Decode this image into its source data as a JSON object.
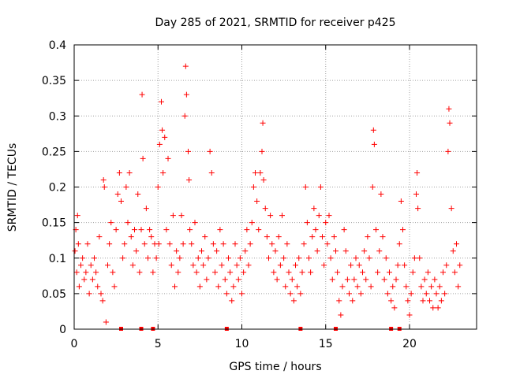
{
  "chart_data": {
    "type": "scatter",
    "title": "Day 285 of 2021, SRMTID for receiver p425",
    "xlabel": "GPS time / hours",
    "ylabel": "SRMTID / TECUs",
    "xlim": [
      0,
      24
    ],
    "ylim": [
      0,
      0.4
    ],
    "xticks": [
      0,
      5,
      10,
      15,
      20
    ],
    "yticks": [
      0,
      0.05,
      0.1,
      0.15,
      0.2,
      0.25,
      0.3,
      0.35,
      0.4
    ],
    "ytick_labels": [
      "0",
      "0.05",
      "0.1",
      "0.15",
      "0.2",
      "0.25",
      "0.3",
      "0.35",
      "0.4"
    ],
    "grid": true,
    "marker": "plus",
    "color": "#ff0000",
    "series": [
      {
        "name": "SRMTID",
        "points": [
          [
            0.05,
            0.11
          ],
          [
            0.1,
            0.14
          ],
          [
            0.15,
            0.08
          ],
          [
            0.2,
            0.16
          ],
          [
            0.25,
            0.12
          ],
          [
            0.3,
            0.06
          ],
          [
            0.4,
            0.09
          ],
          [
            0.5,
            0.1
          ],
          [
            0.6,
            0.07
          ],
          [
            0.7,
            0.08
          ],
          [
            0.8,
            0.12
          ],
          [
            0.9,
            0.05
          ],
          [
            1.0,
            0.09
          ],
          [
            1.1,
            0.07
          ],
          [
            1.2,
            0.1
          ],
          [
            1.3,
            0.08
          ],
          [
            1.4,
            0.06
          ],
          [
            1.5,
            0.13
          ],
          [
            1.6,
            0.05
          ],
          [
            1.7,
            0.04
          ],
          [
            1.75,
            0.21
          ],
          [
            1.8,
            0.2
          ],
          [
            1.9,
            0.01
          ],
          [
            2.0,
            0.09
          ],
          [
            2.1,
            0.12
          ],
          [
            2.2,
            0.15
          ],
          [
            2.3,
            0.08
          ],
          [
            2.4,
            0.06
          ],
          [
            2.5,
            0.14
          ],
          [
            2.6,
            0.19
          ],
          [
            2.7,
            0.22
          ],
          [
            2.8,
            0.18
          ],
          [
            2.9,
            0.1
          ],
          [
            3.0,
            0.12
          ],
          [
            3.1,
            0.2
          ],
          [
            3.2,
            0.15
          ],
          [
            3.3,
            0.22
          ],
          [
            3.4,
            0.13
          ],
          [
            3.5,
            0.09
          ],
          [
            3.6,
            0.14
          ],
          [
            3.7,
            0.11
          ],
          [
            3.8,
            0.19
          ],
          [
            3.9,
            0.08
          ],
          [
            4.0,
            0.14
          ],
          [
            4.05,
            0.33
          ],
          [
            4.1,
            0.24
          ],
          [
            4.2,
            0.12
          ],
          [
            4.3,
            0.17
          ],
          [
            4.4,
            0.1
          ],
          [
            4.5,
            0.14
          ],
          [
            4.6,
            0.13
          ],
          [
            4.7,
            0.08
          ],
          [
            4.8,
            0.12
          ],
          [
            4.9,
            0.1
          ],
          [
            5.0,
            0.2
          ],
          [
            5.05,
            0.12
          ],
          [
            5.1,
            0.26
          ],
          [
            5.2,
            0.32
          ],
          [
            5.25,
            0.28
          ],
          [
            5.3,
            0.22
          ],
          [
            5.4,
            0.27
          ],
          [
            5.5,
            0.14
          ],
          [
            5.6,
            0.24
          ],
          [
            5.7,
            0.12
          ],
          [
            5.8,
            0.09
          ],
          [
            5.9,
            0.16
          ],
          [
            6.0,
            0.06
          ],
          [
            6.1,
            0.11
          ],
          [
            6.2,
            0.08
          ],
          [
            6.3,
            0.1
          ],
          [
            6.4,
            0.16
          ],
          [
            6.5,
            0.12
          ],
          [
            6.6,
            0.3
          ],
          [
            6.65,
            0.37
          ],
          [
            6.7,
            0.33
          ],
          [
            6.8,
            0.25
          ],
          [
            6.85,
            0.21
          ],
          [
            6.9,
            0.14
          ],
          [
            7.0,
            0.12
          ],
          [
            7.1,
            0.09
          ],
          [
            7.2,
            0.15
          ],
          [
            7.3,
            0.08
          ],
          [
            7.4,
            0.1
          ],
          [
            7.5,
            0.06
          ],
          [
            7.6,
            0.11
          ],
          [
            7.7,
            0.09
          ],
          [
            7.8,
            0.13
          ],
          [
            7.9,
            0.07
          ],
          [
            8.0,
            0.1
          ],
          [
            8.1,
            0.25
          ],
          [
            8.2,
            0.22
          ],
          [
            8.3,
            0.12
          ],
          [
            8.4,
            0.08
          ],
          [
            8.5,
            0.11
          ],
          [
            8.6,
            0.06
          ],
          [
            8.7,
            0.14
          ],
          [
            8.8,
            0.09
          ],
          [
            8.9,
            0.12
          ],
          [
            9.0,
            0.07
          ],
          [
            9.1,
            0.05
          ],
          [
            9.2,
            0.1
          ],
          [
            9.3,
            0.08
          ],
          [
            9.4,
            0.04
          ],
          [
            9.5,
            0.06
          ],
          [
            9.6,
            0.12
          ],
          [
            9.7,
            0.09
          ],
          [
            9.8,
            0.07
          ],
          [
            9.9,
            0.1
          ],
          [
            10.0,
            0.05
          ],
          [
            10.1,
            0.08
          ],
          [
            10.2,
            0.11
          ],
          [
            10.3,
            0.14
          ],
          [
            10.4,
            0.09
          ],
          [
            10.5,
            0.12
          ],
          [
            10.6,
            0.15
          ],
          [
            10.7,
            0.2
          ],
          [
            10.8,
            0.22
          ],
          [
            10.9,
            0.18
          ],
          [
            11.0,
            0.14
          ],
          [
            11.1,
            0.22
          ],
          [
            11.2,
            0.25
          ],
          [
            11.25,
            0.29
          ],
          [
            11.3,
            0.21
          ],
          [
            11.4,
            0.17
          ],
          [
            11.5,
            0.13
          ],
          [
            11.6,
            0.1
          ],
          [
            11.7,
            0.16
          ],
          [
            11.8,
            0.12
          ],
          [
            11.9,
            0.08
          ],
          [
            12.0,
            0.11
          ],
          [
            12.1,
            0.07
          ],
          [
            12.2,
            0.13
          ],
          [
            12.3,
            0.09
          ],
          [
            12.4,
            0.16
          ],
          [
            12.5,
            0.1
          ],
          [
            12.6,
            0.06
          ],
          [
            12.7,
            0.12
          ],
          [
            12.8,
            0.08
          ],
          [
            12.9,
            0.05
          ],
          [
            13.0,
            0.07
          ],
          [
            13.1,
            0.04
          ],
          [
            13.2,
            0.09
          ],
          [
            13.3,
            0.06
          ],
          [
            13.4,
            0.1
          ],
          [
            13.5,
            0.05
          ],
          [
            13.6,
            0.08
          ],
          [
            13.7,
            0.12
          ],
          [
            13.8,
            0.2
          ],
          [
            13.9,
            0.15
          ],
          [
            14.0,
            0.1
          ],
          [
            14.1,
            0.08
          ],
          [
            14.2,
            0.13
          ],
          [
            14.3,
            0.17
          ],
          [
            14.4,
            0.14
          ],
          [
            14.5,
            0.11
          ],
          [
            14.6,
            0.16
          ],
          [
            14.7,
            0.2
          ],
          [
            14.8,
            0.13
          ],
          [
            14.9,
            0.09
          ],
          [
            15.0,
            0.15
          ],
          [
            15.1,
            0.12
          ],
          [
            15.2,
            0.16
          ],
          [
            15.3,
            0.1
          ],
          [
            15.4,
            0.07
          ],
          [
            15.5,
            0.13
          ],
          [
            15.6,
            0.11
          ],
          [
            15.7,
            0.08
          ],
          [
            15.8,
            0.04
          ],
          [
            15.9,
            0.02
          ],
          [
            16.0,
            0.06
          ],
          [
            16.1,
            0.14
          ],
          [
            16.2,
            0.11
          ],
          [
            16.3,
            0.07
          ],
          [
            16.4,
            0.05
          ],
          [
            16.5,
            0.09
          ],
          [
            16.6,
            0.04
          ],
          [
            16.7,
            0.07
          ],
          [
            16.8,
            0.1
          ],
          [
            16.9,
            0.06
          ],
          [
            17.0,
            0.09
          ],
          [
            17.1,
            0.05
          ],
          [
            17.2,
            0.08
          ],
          [
            17.3,
            0.11
          ],
          [
            17.4,
            0.07
          ],
          [
            17.5,
            0.13
          ],
          [
            17.6,
            0.1
          ],
          [
            17.7,
            0.06
          ],
          [
            17.8,
            0.2
          ],
          [
            17.85,
            0.28
          ],
          [
            17.9,
            0.26
          ],
          [
            18.0,
            0.14
          ],
          [
            18.1,
            0.08
          ],
          [
            18.2,
            0.11
          ],
          [
            18.3,
            0.19
          ],
          [
            18.4,
            0.13
          ],
          [
            18.5,
            0.07
          ],
          [
            18.6,
            0.1
          ],
          [
            18.7,
            0.05
          ],
          [
            18.8,
            0.08
          ],
          [
            18.9,
            0.04
          ],
          [
            19.0,
            0.06
          ],
          [
            19.1,
            0.03
          ],
          [
            19.2,
            0.07
          ],
          [
            19.3,
            0.09
          ],
          [
            19.4,
            0.12
          ],
          [
            19.5,
            0.18
          ],
          [
            19.6,
            0.14
          ],
          [
            19.7,
            0.09
          ],
          [
            19.8,
            0.06
          ],
          [
            19.9,
            0.04
          ],
          [
            20.0,
            0.02
          ],
          [
            20.1,
            0.05
          ],
          [
            20.2,
            0.08
          ],
          [
            20.3,
            0.1
          ],
          [
            20.4,
            0.19
          ],
          [
            20.45,
            0.22
          ],
          [
            20.5,
            0.17
          ],
          [
            20.6,
            0.1
          ],
          [
            20.7,
            0.06
          ],
          [
            20.8,
            0.04
          ],
          [
            20.9,
            0.07
          ],
          [
            21.0,
            0.05
          ],
          [
            21.1,
            0.08
          ],
          [
            21.2,
            0.04
          ],
          [
            21.3,
            0.06
          ],
          [
            21.4,
            0.03
          ],
          [
            21.5,
            0.07
          ],
          [
            21.6,
            0.05
          ],
          [
            21.7,
            0.03
          ],
          [
            21.8,
            0.06
          ],
          [
            21.9,
            0.04
          ],
          [
            22.0,
            0.08
          ],
          [
            22.1,
            0.05
          ],
          [
            22.2,
            0.09
          ],
          [
            22.3,
            0.25
          ],
          [
            22.35,
            0.31
          ],
          [
            22.4,
            0.29
          ],
          [
            22.5,
            0.17
          ],
          [
            22.6,
            0.11
          ],
          [
            22.7,
            0.08
          ],
          [
            22.8,
            0.12
          ],
          [
            22.9,
            0.06
          ],
          [
            23.0,
            0.09
          ]
        ]
      }
    ],
    "zero_markers": [
      2.8,
      4.0,
      4.7,
      9.1,
      13.5,
      15.6,
      18.9,
      19.4
    ]
  }
}
